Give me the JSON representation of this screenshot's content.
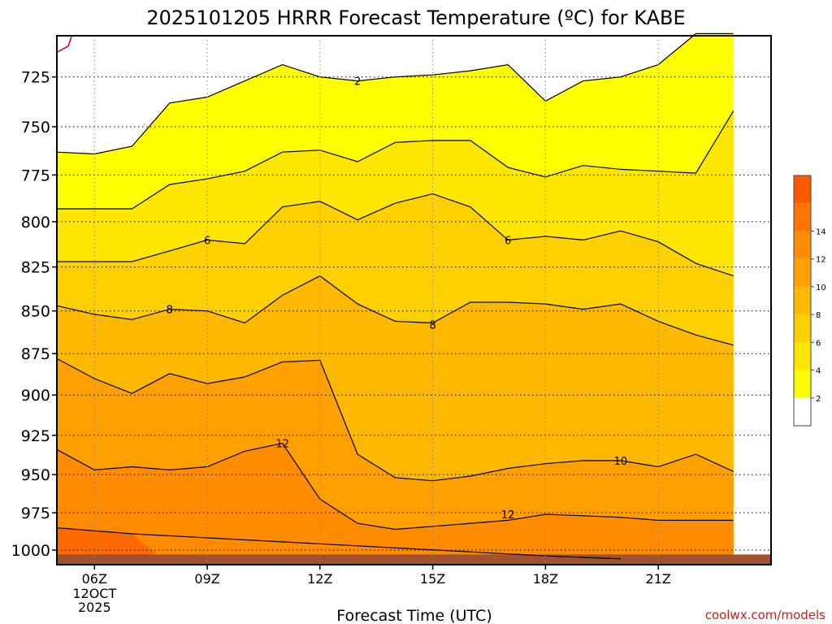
{
  "chart_data": {
    "type": "heatmap",
    "title": "2025101205 HRRR Forecast Temperature (ºC) for KABE",
    "xlabel": "Forecast Time (UTC)",
    "ylabel": "",
    "x_range_hours": [
      5,
      24
    ],
    "y_range_hpa": [
      1010,
      705
    ],
    "y_scale": "log",
    "grid": true,
    "x_ticks": [
      {
        "hour": 6,
        "label": "06Z"
      },
      {
        "hour": 9,
        "label": "09Z"
      },
      {
        "hour": 12,
        "label": "12Z"
      },
      {
        "hour": 15,
        "label": "15Z"
      },
      {
        "hour": 18,
        "label": "18Z"
      },
      {
        "hour": 21,
        "label": "21Z"
      }
    ],
    "x_date_label": [
      "12OCT",
      "2025"
    ],
    "y_ticks": [
      725,
      750,
      775,
      800,
      825,
      850,
      875,
      900,
      925,
      950,
      975,
      1000
    ],
    "x_hours": [
      5,
      6,
      7,
      8,
      9,
      10,
      11,
      12,
      13,
      14,
      15,
      16,
      17,
      18,
      19,
      20,
      21,
      22,
      23
    ],
    "isotherms": [
      {
        "temp": 2,
        "pressure": [
          763,
          764,
          760,
          738,
          735,
          727,
          719,
          725,
          727,
          725,
          724,
          722,
          719,
          737,
          727,
          725,
          719,
          704,
          704
        ]
      },
      {
        "temp": 4,
        "pressure": [
          793,
          793,
          793,
          780,
          777,
          773,
          763,
          762,
          768,
          758,
          757,
          757,
          771,
          776,
          770,
          772,
          773,
          774,
          742
        ]
      },
      {
        "temp": 6,
        "pressure": [
          822,
          822,
          822,
          816,
          810,
          812,
          792,
          789,
          799,
          790,
          785,
          792,
          810,
          808,
          810,
          805,
          811,
          823,
          830
        ]
      },
      {
        "temp": 8,
        "pressure": [
          847,
          852,
          855,
          849,
          850,
          857,
          841,
          830,
          846,
          856,
          857,
          845,
          845,
          846,
          849,
          846,
          856,
          864,
          870
        ]
      },
      {
        "temp": 10,
        "pressure": [
          878,
          890,
          899,
          887,
          893,
          889,
          880,
          879,
          937,
          952,
          954,
          951,
          946,
          943,
          941,
          941,
          945,
          937,
          948
        ]
      },
      {
        "temp": 12,
        "pressure": [
          934,
          947,
          945,
          947,
          945,
          935,
          930,
          966,
          982,
          986,
          984,
          982,
          980,
          976,
          977,
          978,
          980,
          980,
          980
        ]
      },
      {
        "temp": 14,
        "pressure": [
          985,
          987,
          989,
          1010,
          1010,
          1010,
          1010,
          1010,
          1010,
          1010,
          1010,
          1010,
          1010,
          1004,
          1005,
          1006,
          1010,
          1010,
          1010
        ]
      }
    ],
    "contour_labels": [
      {
        "text": "2",
        "hour": 13,
        "pressure": 727
      },
      {
        "text": "6",
        "hour": 9,
        "pressure": 810
      },
      {
        "text": "6",
        "hour": 17,
        "pressure": 810
      },
      {
        "text": "8",
        "hour": 8,
        "pressure": 849
      },
      {
        "text": "8",
        "hour": 15,
        "pressure": 858
      },
      {
        "text": "10",
        "hour": 20,
        "pressure": 941
      },
      {
        "text": "12",
        "hour": 11,
        "pressure": 930
      },
      {
        "text": "12",
        "hour": 17,
        "pressure": 976
      }
    ],
    "surface_pressure": 1003,
    "freezing_line": [
      {
        "hour": 5,
        "pressure": 713
      },
      {
        "hour": 5.3,
        "pressure": 710
      },
      {
        "hour": 5.4,
        "pressure": 705
      }
    ],
    "colorbar": {
      "labels": [
        "2",
        "4",
        "6",
        "8",
        "10",
        "12",
        "14"
      ],
      "levels": [
        2,
        4,
        6,
        8,
        10,
        12,
        14
      ],
      "colors": [
        "#ffffff",
        "#ffff00",
        "#ffe600",
        "#ffd000",
        "#ffb800",
        "#ffa000",
        "#ff8c00",
        "#ff7300",
        "#ff5a00"
      ]
    },
    "colors": {
      "below_2": "#ffffff",
      "2_to_4": "#ffff00",
      "4_to_6": "#ffe600",
      "6_to_8": "#ffd000",
      "8_to_10": "#ffb800",
      "10_to_12": "#ffa000",
      "12_to_14": "#ff8c00",
      "above_14": "#ff6a00",
      "ground": "#a0522d",
      "freezing_line": "#c8005a"
    }
  },
  "credit": "coolwx.com/models"
}
